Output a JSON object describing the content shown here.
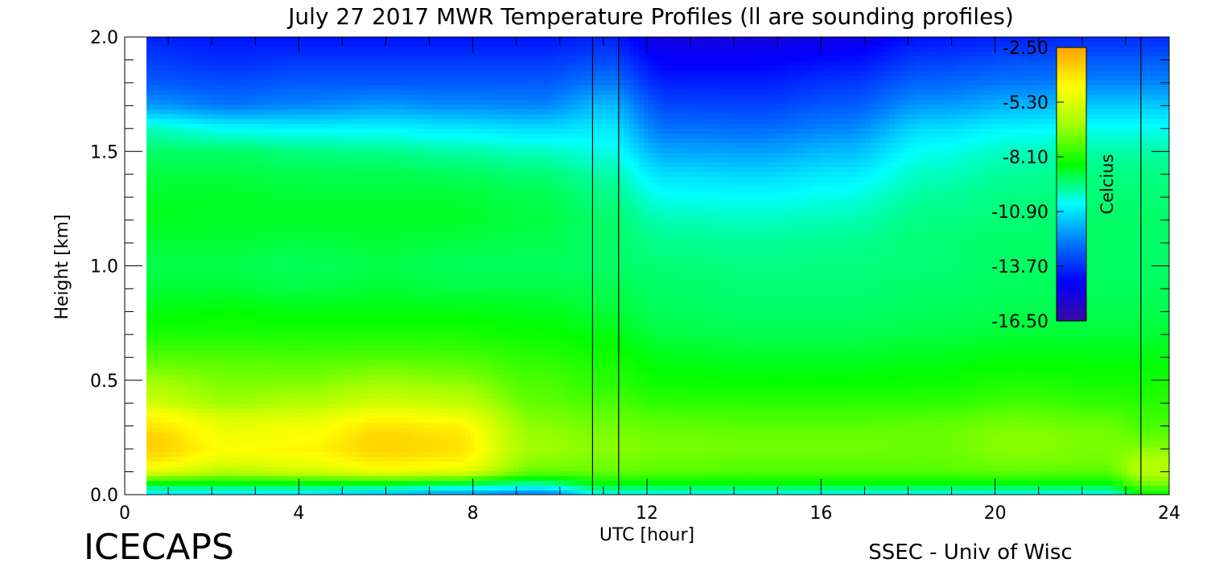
{
  "chart_data": {
    "type": "heatmap",
    "title": "July 27 2017 MWR Temperature Profiles (ll are sounding profiles)",
    "xlabel": "UTC [hour]",
    "ylabel": "Height [km]",
    "xlim": [
      0,
      24
    ],
    "ylim": [
      0.0,
      2.0
    ],
    "x_ticks": [
      0,
      4,
      8,
      12,
      16,
      20,
      24
    ],
    "x_tick_labels": [
      "0",
      "4",
      "8",
      "12",
      "16",
      "20",
      "24"
    ],
    "y_ticks": [
      0.0,
      0.5,
      1.0,
      1.5,
      2.0
    ],
    "y_tick_labels": [
      "0.0",
      "0.5",
      "1.0",
      "1.5",
      "2.0"
    ],
    "colorbar": {
      "label": "Celcius",
      "min": -16.5,
      "max": -2.5,
      "tick_values": [
        -2.5,
        -5.3,
        -8.1,
        -10.9,
        -13.7,
        -16.5
      ],
      "tick_labels": [
        "-2.50",
        "-5.30",
        "-8.10",
        "-10.90",
        "-13.70",
        "-16.50"
      ],
      "stops": [
        "#3a0aa0",
        "#0000ff",
        "#0078ff",
        "#00ffff",
        "#00ff00",
        "#a0ff00",
        "#ffff00",
        "#ffa000"
      ]
    },
    "data_start_hour": 0.5,
    "sounding_times_hour": [
      10.75,
      11.35,
      23.35
    ],
    "gap_hours": [
      10.75,
      11.35
    ],
    "heights_km": [
      0.0,
      0.05,
      0.1,
      0.15,
      0.2,
      0.25,
      0.3,
      0.35,
      0.4,
      0.5,
      0.6,
      0.7,
      0.8,
      0.9,
      1.0,
      1.1,
      1.2,
      1.3,
      1.4,
      1.5,
      1.6,
      1.7,
      1.8,
      1.9,
      2.0
    ],
    "profiles": [
      {
        "hour": 0.5,
        "values": [
          -11.0,
          -8.5,
          -5.0,
          -4.0,
          -3.5,
          -3.5,
          -4.0,
          -4.5,
          -5.5,
          -6.5,
          -7.5,
          -8.2,
          -8.6,
          -8.9,
          -9.1,
          -8.9,
          -8.7,
          -8.8,
          -9.0,
          -9.3,
          -10.0,
          -12.0,
          -13.0,
          -13.5,
          -14.0
        ]
      },
      {
        "hour": 2.5,
        "values": [
          -11.0,
          -8.5,
          -6.0,
          -5.0,
          -4.5,
          -4.8,
          -5.0,
          -5.5,
          -6.5,
          -7.0,
          -7.5,
          -8.2,
          -8.5,
          -8.9,
          -9.1,
          -8.9,
          -8.8,
          -8.8,
          -9.0,
          -9.3,
          -10.5,
          -12.5,
          -13.2,
          -13.8,
          -14.2
        ]
      },
      {
        "hour": 4.0,
        "values": [
          -11.0,
          -8.5,
          -5.5,
          -4.8,
          -4.3,
          -4.6,
          -4.8,
          -5.3,
          -6.2,
          -7.0,
          -7.6,
          -8.2,
          -8.6,
          -9.0,
          -9.2,
          -9.0,
          -8.8,
          -8.9,
          -9.1,
          -9.5,
          -10.6,
          -12.3,
          -13.0,
          -13.6,
          -14.2
        ]
      },
      {
        "hour": 6.0,
        "values": [
          -11.5,
          -8.5,
          -4.8,
          -4.0,
          -3.6,
          -3.6,
          -4.0,
          -4.6,
          -5.5,
          -6.6,
          -7.5,
          -8.2,
          -8.6,
          -8.9,
          -9.1,
          -8.9,
          -8.8,
          -8.9,
          -9.1,
          -9.6,
          -10.6,
          -12.0,
          -13.0,
          -13.6,
          -14.2
        ]
      },
      {
        "hour": 7.5,
        "values": [
          -12.0,
          -8.8,
          -5.0,
          -4.2,
          -3.8,
          -3.9,
          -4.2,
          -4.9,
          -5.8,
          -6.8,
          -7.6,
          -8.2,
          -8.6,
          -9.0,
          -9.2,
          -9.0,
          -8.8,
          -8.9,
          -9.2,
          -9.8,
          -10.8,
          -12.2,
          -13.0,
          -13.6,
          -14.2
        ]
      },
      {
        "hour": 9.5,
        "values": [
          -12.5,
          -9.5,
          -7.2,
          -6.8,
          -6.5,
          -6.6,
          -6.8,
          -7.0,
          -7.3,
          -7.6,
          -8.0,
          -8.4,
          -8.7,
          -9.0,
          -9.2,
          -9.1,
          -9.0,
          -9.1,
          -9.4,
          -10.0,
          -11.0,
          -12.3,
          -13.0,
          -13.6,
          -14.2
        ]
      },
      {
        "hour": 11.0,
        "values": [
          -10.5,
          -8.5,
          -7.2,
          -7.0,
          -6.8,
          -6.9,
          -7.1,
          -7.3,
          -7.6,
          -8.0,
          -8.3,
          -8.6,
          -8.9,
          -9.1,
          -9.3,
          -9.3,
          -9.3,
          -9.5,
          -9.8,
          -10.3,
          -10.8,
          -11.5,
          -12.5,
          -13.3,
          -14.0
        ]
      },
      {
        "hour": 12.5,
        "values": [
          -10.5,
          -8.5,
          -7.4,
          -7.2,
          -7.0,
          -7.1,
          -7.3,
          -7.6,
          -8.0,
          -8.4,
          -8.7,
          -9.0,
          -9.2,
          -9.3,
          -9.4,
          -9.6,
          -9.9,
          -10.4,
          -11.0,
          -11.8,
          -12.6,
          -13.3,
          -14.0,
          -14.6,
          -15.2
        ]
      },
      {
        "hour": 14.5,
        "values": [
          -10.5,
          -8.5,
          -7.5,
          -7.3,
          -7.1,
          -7.2,
          -7.4,
          -7.7,
          -8.0,
          -8.5,
          -8.8,
          -9.1,
          -9.3,
          -9.4,
          -9.5,
          -9.7,
          -10.0,
          -10.5,
          -11.1,
          -11.9,
          -12.7,
          -13.4,
          -14.0,
          -14.6,
          -15.2
        ]
      },
      {
        "hour": 16.5,
        "values": [
          -10.5,
          -8.5,
          -7.5,
          -7.3,
          -7.1,
          -7.2,
          -7.4,
          -7.7,
          -8.0,
          -8.5,
          -8.8,
          -9.1,
          -9.3,
          -9.4,
          -9.5,
          -9.6,
          -9.9,
          -10.3,
          -10.8,
          -11.5,
          -12.3,
          -13.0,
          -13.6,
          -14.3,
          -15.0
        ]
      },
      {
        "hour": 18.5,
        "values": [
          -10.5,
          -8.5,
          -7.5,
          -7.3,
          -7.2,
          -7.2,
          -7.3,
          -7.6,
          -8.0,
          -8.4,
          -8.7,
          -9.0,
          -9.2,
          -9.3,
          -9.4,
          -9.4,
          -9.5,
          -9.7,
          -10.0,
          -10.4,
          -11.0,
          -12.0,
          -12.8,
          -13.5,
          -14.2
        ]
      },
      {
        "hour": 20.5,
        "values": [
          -10.5,
          -8.5,
          -7.3,
          -7.0,
          -6.8,
          -6.8,
          -7.0,
          -7.3,
          -7.7,
          -8.2,
          -8.6,
          -8.9,
          -9.1,
          -9.2,
          -9.3,
          -9.3,
          -9.4,
          -9.5,
          -9.7,
          -10.0,
          -10.6,
          -11.6,
          -12.5,
          -13.2,
          -14.0
        ]
      },
      {
        "hour": 22.5,
        "values": [
          -10.5,
          -8.5,
          -7.4,
          -7.1,
          -7.0,
          -7.0,
          -7.2,
          -7.5,
          -7.9,
          -8.3,
          -8.6,
          -8.9,
          -9.1,
          -9.2,
          -9.3,
          -9.3,
          -9.3,
          -9.4,
          -9.5,
          -9.8,
          -10.4,
          -11.3,
          -12.3,
          -13.0,
          -13.8
        ]
      },
      {
        "hour": 23.5,
        "values": [
          -8.5,
          -7.0,
          -6.0,
          -6.2,
          -6.8,
          -7.3,
          -7.6,
          -7.8,
          -8.0,
          -8.3,
          -8.6,
          -8.9,
          -9.1,
          -9.2,
          -9.3,
          -9.3,
          -9.3,
          -9.4,
          -9.5,
          -9.8,
          -10.4,
          -11.3,
          -12.3,
          -13.0,
          -13.8
        ]
      }
    ]
  },
  "footer": {
    "left_logo": "ICECAPS",
    "right_credit": "SSEC - Univ of Wisc"
  }
}
